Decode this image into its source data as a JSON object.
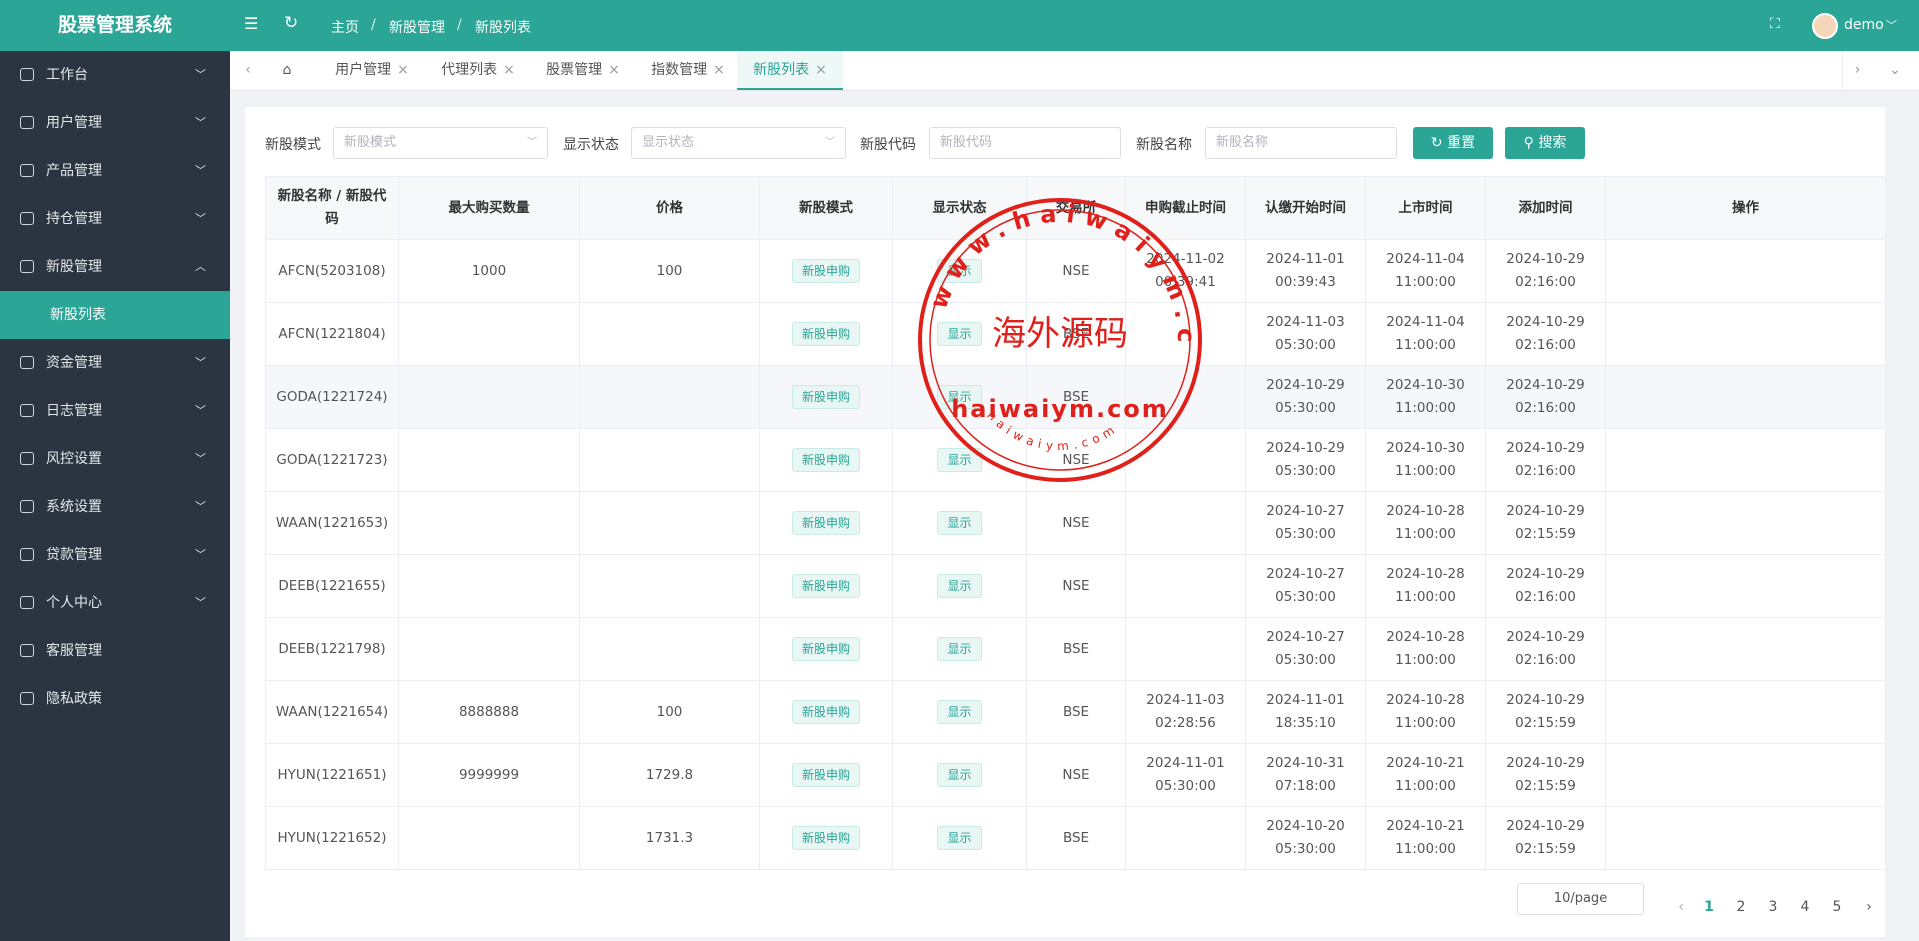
{
  "header": {
    "title": "股票管理系统",
    "breadcrumb": [
      "主页",
      "新股管理",
      "新股列表"
    ],
    "user": "demo"
  },
  "sidebar": {
    "items": [
      "工作台",
      "用户管理",
      "产品管理",
      "持仓管理",
      "新股管理",
      "新股列表",
      "资金管理",
      "日志管理",
      "风控设置",
      "系统设置",
      "贷款管理",
      "个人中心",
      "客服管理",
      "隐私政策"
    ],
    "active": "新股列表"
  },
  "tabs": {
    "items": [
      "用户管理",
      "代理列表",
      "股票管理",
      "指数管理",
      "新股列表"
    ],
    "active": "新股列表"
  },
  "filters": [
    {
      "label": "新股模式",
      "placeholder": "新股模式"
    },
    {
      "label": "显示状态",
      "placeholder": "显示状态"
    },
    {
      "label": "新股代码",
      "placeholder": "新股代码"
    },
    {
      "label": "新股名称",
      "placeholder": "新股名称"
    }
  ],
  "buttons": {
    "reset": "重置",
    "search": "搜索"
  },
  "table": {
    "headers": [
      "新股名称 / 新股代码",
      "最大购买数量",
      "价格",
      "新股模式",
      "显示状态",
      "交易所",
      "申购截止时间",
      "认缴开始时间",
      "上市时间",
      "添加时间",
      "操作"
    ],
    "rows": [
      [
        "AFCN(5203108)",
        "1000",
        "100",
        "新股申购",
        "显示",
        "NSE",
        "2024-11-02 00:39:41",
        "2024-11-01 00:39:43",
        "2024-11-04 11:00:00",
        "2024-10-29 02:16:00",
        null
      ],
      [
        "AFCN(1221804)",
        null,
        null,
        "新股申购",
        "显示",
        "BSE",
        null,
        "2024-11-03 05:30:00",
        "2024-11-04 11:00:00",
        "2024-10-29 02:16:00",
        null
      ],
      [
        "GODA(1221724)",
        null,
        null,
        "新股申购",
        "显示",
        "BSE",
        null,
        "2024-10-29 05:30:00",
        "2024-10-30 11:00:00",
        "2024-10-29 02:16:00",
        null
      ],
      [
        "GODA(1221723)",
        null,
        null,
        "新股申购",
        "显示",
        "NSE",
        null,
        "2024-10-29 05:30:00",
        "2024-10-30 11:00:00",
        "2024-10-29 02:16:00",
        null
      ],
      [
        "WAAN(1221653)",
        null,
        null,
        "新股申购",
        "显示",
        "NSE",
        null,
        "2024-10-27 05:30:00",
        "2024-10-28 11:00:00",
        "2024-10-29 02:15:59",
        null
      ],
      [
        "DEEB(1221655)",
        null,
        null,
        "新股申购",
        "显示",
        "NSE",
        null,
        "2024-10-27 05:30:00",
        "2024-10-28 11:00:00",
        "2024-10-29 02:16:00",
        null
      ],
      [
        "DEEB(1221798)",
        null,
        null,
        "新股申购",
        "显示",
        "BSE",
        null,
        "2024-10-27 05:30:00",
        "2024-10-28 11:00:00",
        "2024-10-29 02:16:00",
        null
      ],
      [
        "WAAN(1221654)",
        "8888888",
        "100",
        "新股申购",
        "显示",
        "BSE",
        "2024-11-03 02:28:56",
        "2024-11-01 18:35:10",
        "2024-10-28 11:00:00",
        "2024-10-29 02:15:59",
        null
      ],
      [
        "HYUN(1221651)",
        "9999999",
        "1729.8",
        "新股申购",
        "显示",
        "NSE",
        "2024-11-01 05:30:00",
        "2024-10-31 07:18:00",
        "2024-10-21 11:00:00",
        "2024-10-29 02:15:59",
        null
      ],
      [
        "HYUN(1221652)",
        null,
        "1731.3",
        "新股申购",
        "显示",
        "BSE",
        null,
        "2024-10-20 05:30:00",
        "2024-10-21 11:00:00",
        "2024-10-29 02:15:59",
        null
      ]
    ]
  },
  "pagination": {
    "page_size": "10/page",
    "pages": [
      "1",
      "2",
      "3",
      "4",
      "5"
    ],
    "current": "1"
  },
  "watermark": {
    "outer": "www.haiwaiym.com",
    "center": "海外源码",
    "domain": "haiwaiym.com",
    "inner": "haiwaiym.com"
  }
}
